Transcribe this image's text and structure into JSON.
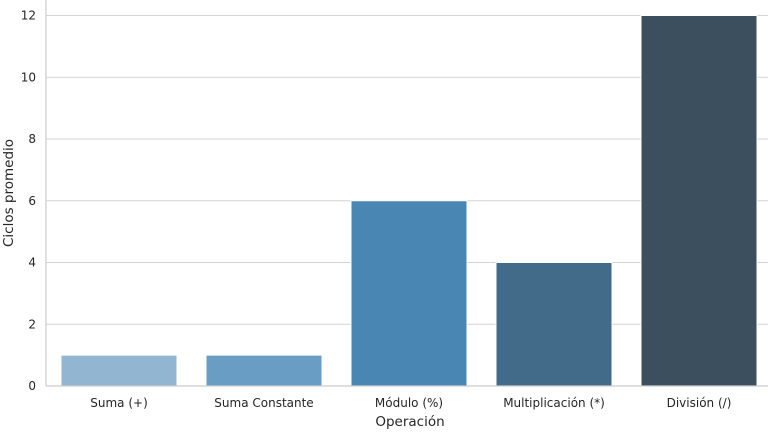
{
  "chart_data": {
    "type": "bar",
    "title": "",
    "xlabel": "Operación",
    "ylabel": "Ciclos promedio",
    "categories": [
      "Suma (+)",
      "Suma Constante",
      "Módulo (%)",
      "Multiplicación (*)",
      "División (/)"
    ],
    "values": [
      1,
      1,
      6,
      4,
      12
    ],
    "colors": [
      "#92b6d2",
      "#6a9dc4",
      "#4986b4",
      "#426b8a",
      "#3c4f5f"
    ],
    "ylim": [
      0,
      12
    ],
    "yticks": [
      0,
      2,
      4,
      6,
      8,
      10,
      12
    ],
    "grid": "horizontal",
    "legend": "none"
  }
}
